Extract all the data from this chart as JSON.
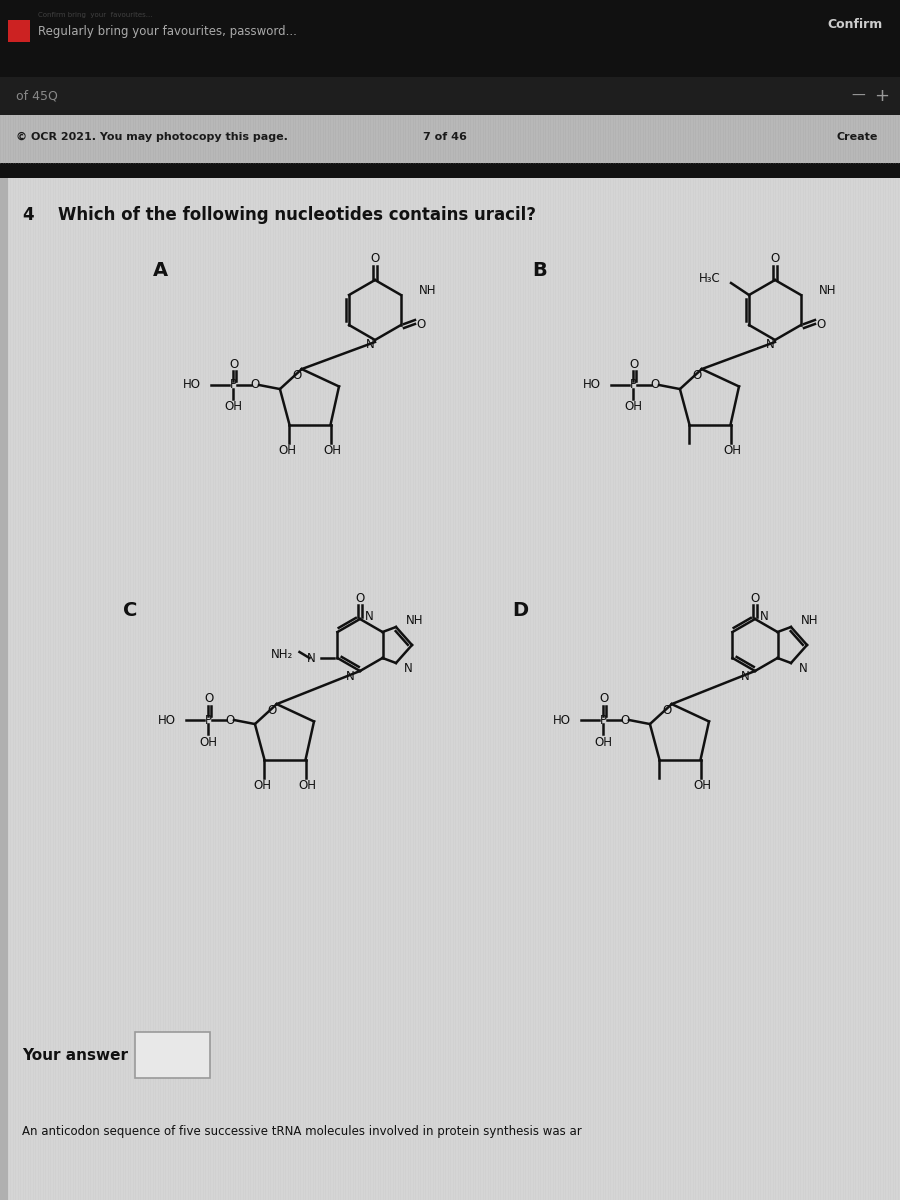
{
  "bg_dark": "#111111",
  "bg_toolbar2": "#222222",
  "bg_stripe": "#b0b0b0",
  "bg_content": "#cccccc",
  "bg_panel": "#e0e0e0",
  "text_dark": "#111111",
  "text_mid": "#555555",
  "text_light": "#aaaaaa",
  "confirm_text": "Confirm",
  "header_sub": "Regularly bring your favourites, password...",
  "toolbar_label": "of 45",
  "copyright": "© OCR 2021. You may photocopy this page.",
  "page_num": "7 of 46",
  "create_label": "Create",
  "q_num": "4",
  "q_text": "Which of the following nucleotides contains uracil?",
  "label_a": "A",
  "label_b": "B",
  "label_c": "C",
  "label_d": "D",
  "your_answer": "Your answer",
  "bottom_text": "An anticodon sequence of five successive tRNA molecules involved in protein synthesis was ar"
}
